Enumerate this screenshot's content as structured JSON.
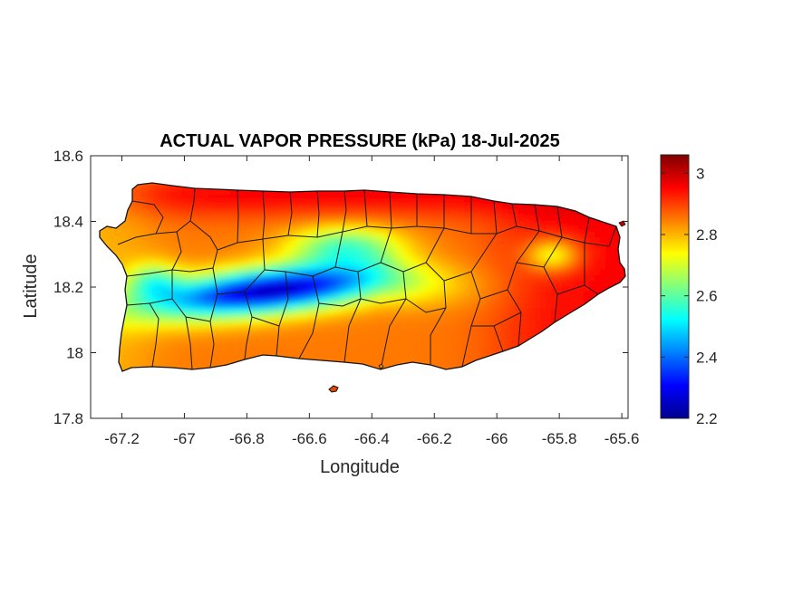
{
  "chart_data": {
    "type": "heatmap",
    "title": "ACTUAL VAPOR PRESSURE (kPa) 18-Jul-2025",
    "xlabel": "Longitude",
    "ylabel": "Latitude",
    "xlim": [
      -67.3,
      -65.58
    ],
    "ylim": [
      17.8,
      18.6
    ],
    "xticks": [
      -67.2,
      -67,
      -66.8,
      -66.6,
      -66.4,
      -66.2,
      -66,
      -65.8,
      -65.6
    ],
    "xtick_labels": [
      "-67.2",
      "-67",
      "-66.8",
      "-66.6",
      "-66.4",
      "-66.2",
      "-66",
      "-65.8",
      "-65.6"
    ],
    "yticks": [
      17.8,
      18,
      18.2,
      18.4,
      18.6
    ],
    "ytick_labels": [
      "17.8",
      "18",
      "18.2",
      "18.4",
      "18.6"
    ],
    "colorbar": {
      "colormap": "jet",
      "range": [
        2.2,
        3.06
      ],
      "ticks": [
        2.2,
        2.4,
        2.6,
        2.8,
        3
      ],
      "tick_labels": [
        "2.2",
        "2.4",
        "2.6",
        "2.8",
        "3"
      ],
      "placement": "right"
    },
    "field_description": {
      "north_coast": 2.95,
      "east_region": 3.02,
      "south_coast": 2.85,
      "central_mountains_min": 2.22,
      "west_coast": 2.75
    },
    "grid": false
  }
}
